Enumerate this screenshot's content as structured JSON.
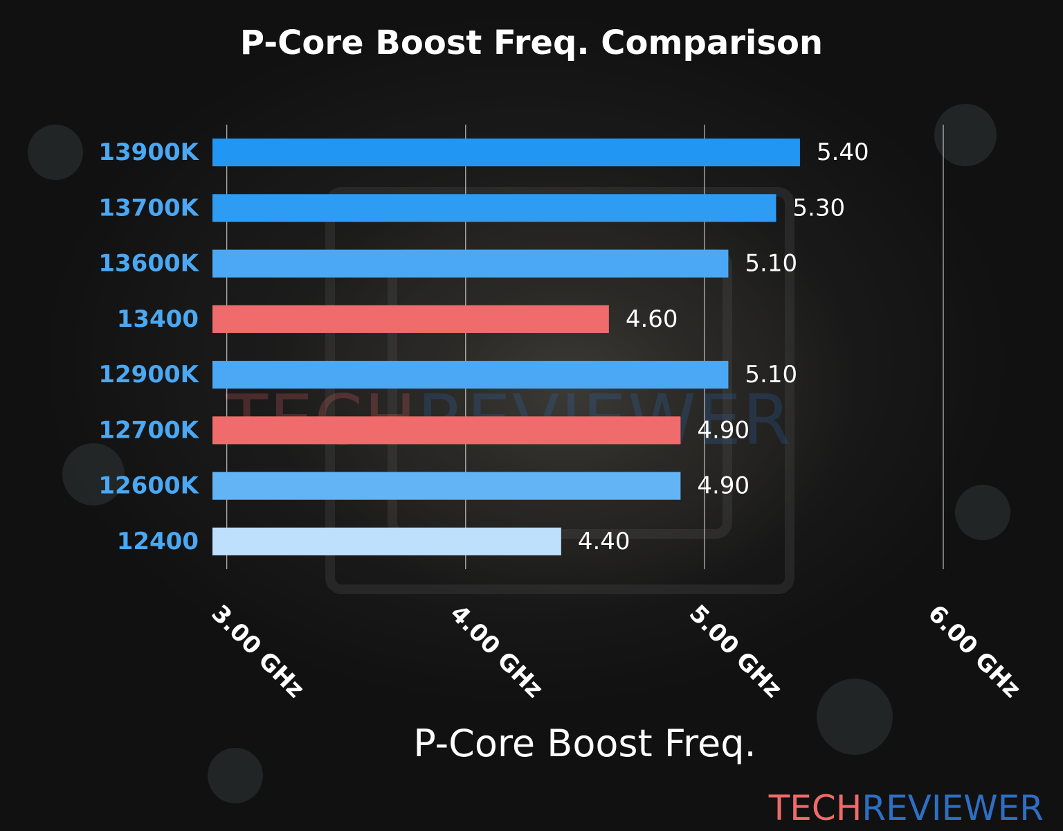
{
  "chart_data": {
    "type": "bar",
    "orientation": "horizontal",
    "title": "P-Core Boost Freq. Comparison",
    "xlabel": "P-Core Boost Freq.",
    "ylabel": "",
    "xlim": [
      2.94,
      6.0
    ],
    "xticks": [
      3,
      4,
      5,
      6
    ],
    "xtick_labels": [
      "3.00 GHz",
      "4.00 GHz",
      "5.00 GHz",
      "6.00 GHz"
    ],
    "grid": true,
    "categories": [
      "13900K",
      "13700K",
      "13600K",
      "13400",
      "12900K",
      "12700K",
      "12600K",
      "12400"
    ],
    "values": [
      5.4,
      5.3,
      5.1,
      4.6,
      5.1,
      4.9,
      4.9,
      4.4
    ],
    "value_labels": [
      "5.40",
      "5.30",
      "5.10",
      "4.60",
      "5.10",
      "4.90",
      "4.90",
      "4.40"
    ],
    "bar_colors": [
      "#2196f3",
      "#2e9cf3",
      "#4aa8f4",
      "#f06b6b",
      "#4aa8f4",
      "#f06b6b",
      "#63b4f5",
      "#bfe0fc"
    ],
    "category_label_color": "#4aa8f4"
  },
  "logo": {
    "part1": "TECH",
    "part2": "REVIEWER",
    "color1": "#f06a6a",
    "color2": "#2d6fc4"
  }
}
